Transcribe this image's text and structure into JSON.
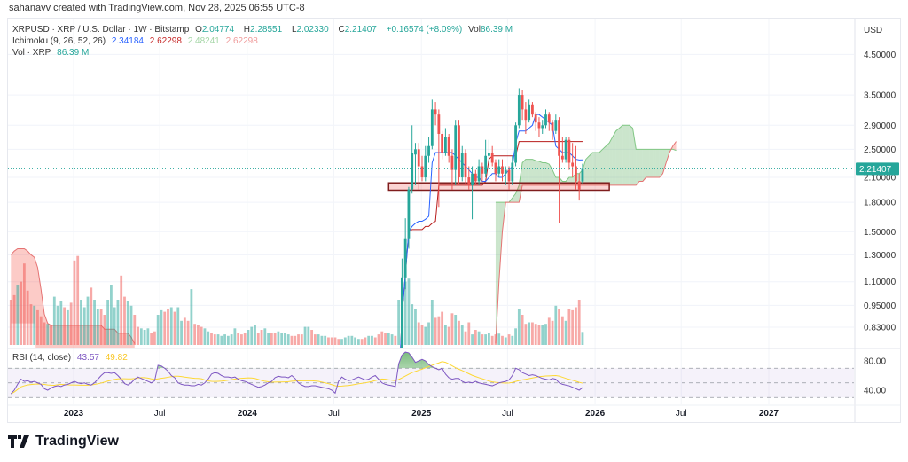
{
  "attribution": "sahanavv created with TradingView.com, Nov 28, 2025 06:55 UTC-8",
  "legend": {
    "symbol": "XRPUSD · XRP / U.S. Dollar · 1W · Bitstamp",
    "o_label": "O",
    "o": "2.04774",
    "h_label": "H",
    "h": "2.28551",
    "l_label": "L",
    "l": "2.02330",
    "c_label": "C",
    "c": "2.21407",
    "change": "+0.16574 (+8.09%)",
    "vol_label": "Vol",
    "vol": "86.39 M",
    "ichimoku_label": "Ichimoku (9, 26, 52, 26)",
    "ichimoku_values": [
      "2.34184",
      "2.62298",
      "2.48241",
      "2.62298"
    ],
    "volume_label": "Vol · XRP",
    "volume_value": "86.39 M",
    "rsi_label": "RSI (14, close)",
    "rsi_value": "43.57",
    "rsi_ma_value": "49.82"
  },
  "price_axis": {
    "currency": "USD",
    "ticks": [
      "4.50000",
      "3.50000",
      "2.90000",
      "2.50000",
      "2.10000",
      "1.80000",
      "1.50000",
      "1.30000",
      "1.10000",
      "0.95000",
      "0.83000"
    ],
    "last_price": "2.21407"
  },
  "rsi_axis": {
    "ticks": [
      "80.00",
      "40.00"
    ]
  },
  "time_axis": {
    "ticks": [
      {
        "label": "2023",
        "date": "2023-01-01",
        "bold": true
      },
      {
        "label": "Jul",
        "date": "2023-07-01",
        "bold": false
      },
      {
        "label": "2024",
        "date": "2024-01-01",
        "bold": true
      },
      {
        "label": "Jul",
        "date": "2024-07-01",
        "bold": false
      },
      {
        "label": "2025",
        "date": "2025-01-01",
        "bold": true
      },
      {
        "label": "Jul",
        "date": "2025-07-01",
        "bold": false
      },
      {
        "label": "2026",
        "date": "2026-01-01",
        "bold": true
      },
      {
        "label": "Jul",
        "date": "2026-07-01",
        "bold": false
      },
      {
        "label": "2027",
        "date": "2027-01-01",
        "bold": true
      }
    ]
  },
  "logo_text": "TradingView",
  "colors": {
    "up": "#26a69a",
    "down": "#ef5350",
    "conversion": "#2962ff",
    "base": "#b71c1c",
    "span_a": "#43a047",
    "span_b": "#e57373",
    "rsi": "#7e57c2",
    "rsi_ma": "#fdd835",
    "box": "#7f1d1d"
  },
  "chart_data": {
    "type": "candlestick",
    "interval": "1W",
    "price_scale": "log",
    "first_week": "2022-08-15",
    "first_candle_week": "2024-11-04",
    "candles": [
      [
        0.5,
        0.62,
        0.49,
        0.6
      ],
      [
        0.6,
        1.27,
        0.58,
        1.13
      ],
      [
        1.13,
        1.63,
        1.05,
        1.44
      ],
      [
        1.44,
        1.98,
        1.35,
        1.95
      ],
      [
        1.95,
        2.9,
        1.9,
        2.45
      ],
      [
        2.42,
        2.6,
        2.0,
        2.5
      ],
      [
        2.5,
        2.6,
        1.95,
        2.25
      ],
      [
        2.25,
        2.4,
        2.05,
        2.1
      ],
      [
        2.1,
        2.55,
        2.05,
        2.4
      ],
      [
        2.4,
        2.7,
        2.3,
        2.55
      ],
      [
        2.55,
        3.4,
        2.5,
        3.2
      ],
      [
        3.2,
        3.35,
        2.9,
        3.1
      ],
      [
        3.1,
        3.2,
        1.75,
        2.75
      ],
      [
        2.75,
        2.8,
        2.35,
        2.45
      ],
      [
        2.45,
        2.85,
        2.4,
        2.7
      ],
      [
        2.7,
        2.75,
        2.3,
        2.4
      ],
      [
        2.4,
        2.5,
        1.95,
        2.2
      ],
      [
        2.2,
        3.0,
        2.0,
        2.9
      ],
      [
        2.9,
        3.0,
        2.0,
        2.1
      ],
      [
        2.1,
        2.55,
        2.05,
        2.45
      ],
      [
        2.45,
        2.5,
        2.0,
        2.1
      ],
      [
        2.1,
        2.25,
        1.95,
        2.0
      ],
      [
        2.0,
        2.25,
        1.62,
        2.15
      ],
      [
        2.15,
        2.2,
        2.0,
        2.05
      ],
      [
        2.05,
        2.35,
        2.0,
        2.25
      ],
      [
        2.25,
        2.3,
        2.05,
        2.15
      ],
      [
        2.15,
        2.65,
        2.1,
        2.4
      ],
      [
        2.4,
        2.65,
        2.3,
        2.45
      ],
      [
        2.45,
        2.55,
        2.25,
        2.3
      ],
      [
        2.3,
        2.35,
        2.05,
        2.15
      ],
      [
        2.15,
        2.35,
        2.1,
        2.25
      ],
      [
        2.25,
        2.35,
        2.05,
        2.15
      ],
      [
        2.15,
        2.25,
        2.0,
        2.2
      ],
      [
        2.2,
        2.25,
        1.95,
        2.05
      ],
      [
        2.05,
        2.4,
        2.0,
        2.3
      ],
      [
        2.3,
        2.95,
        2.25,
        2.9
      ],
      [
        2.9,
        3.65,
        2.85,
        3.5
      ],
      [
        3.5,
        3.6,
        3.0,
        3.2
      ],
      [
        3.2,
        3.35,
        2.75,
        3.0
      ],
      [
        3.0,
        3.4,
        2.95,
        3.3
      ],
      [
        3.3,
        3.35,
        3.05,
        3.1
      ],
      [
        3.1,
        3.15,
        2.8,
        2.95
      ],
      [
        2.95,
        3.05,
        2.7,
        2.85
      ],
      [
        2.85,
        3.0,
        2.75,
        2.9
      ],
      [
        2.9,
        3.2,
        2.85,
        3.1
      ],
      [
        3.1,
        3.15,
        2.8,
        2.95
      ],
      [
        2.95,
        3.0,
        2.65,
        2.8
      ],
      [
        2.8,
        3.1,
        2.75,
        3.0
      ],
      [
        3.0,
        3.05,
        1.58,
        2.4
      ],
      [
        2.4,
        2.7,
        2.3,
        2.35
      ],
      [
        2.35,
        2.7,
        2.3,
        2.65
      ],
      [
        2.65,
        2.7,
        2.2,
        2.3
      ],
      [
        2.3,
        2.6,
        2.1,
        2.25
      ],
      [
        2.25,
        2.55,
        1.95,
        2.05
      ],
      [
        2.05,
        2.15,
        1.82,
        1.95
      ],
      [
        2.04774,
        2.28551,
        2.0233,
        2.21407
      ]
    ],
    "volume_m_before_candles": [
      300,
      330,
      400,
      420,
      540,
      360,
      270,
      260,
      230,
      190,
      150,
      140,
      130,
      320,
      260,
      290,
      250,
      230,
      280,
      560,
      590,
      300,
      250,
      320,
      380,
      300,
      240,
      240,
      200,
      300,
      400,
      250,
      300,
      460,
      320,
      290,
      260,
      200,
      120,
      110,
      100,
      110,
      80,
      90,
      200,
      230,
      220,
      240,
      250,
      220,
      250,
      160,
      180,
      160,
      370,
      140,
      130,
      120,
      110,
      90,
      80,
      70,
      70,
      60,
      70,
      60,
      70,
      110,
      80,
      70,
      80,
      100,
      120,
      130,
      80,
      100,
      110,
      80,
      80,
      80,
      90,
      80,
      80,
      70,
      60,
      60,
      70,
      70,
      120,
      120,
      100,
      70,
      70,
      60,
      60,
      50,
      50,
      50,
      40,
      40,
      50,
      60,
      60,
      50,
      40,
      40,
      50,
      60,
      60,
      50,
      70,
      90,
      80,
      80,
      70,
      60
    ],
    "volume_up_before_candles": "ddudddduddduduuududdduuuduudduuuudduudduuudduudduduudduddduudduuuuuuddduuudduudduuuudddduudduuudddduuuuuudduudddduudd",
    "volume_m_candles": [
      300,
      370,
      420,
      440,
      270,
      240,
      150,
      130,
      120,
      150,
      300,
      180,
      190,
      220,
      130,
      120,
      210,
      200,
      160,
      130,
      90,
      150,
      70,
      100,
      90,
      70,
      70,
      80,
      60,
      70,
      75,
      60,
      50,
      70,
      60,
      110,
      240,
      200,
      140,
      150,
      150,
      140,
      130,
      130,
      140,
      180,
      160,
      260,
      240,
      190,
      160,
      240,
      230,
      250,
      300,
      86.39
    ],
    "ichimoku_conversion": [
      0.55,
      0.9,
      1.15,
      1.5,
      1.55,
      1.58,
      1.6,
      1.6,
      1.62,
      1.65,
      2.3,
      2.45,
      2.45,
      2.45,
      2.45,
      2.45,
      2.45,
      2.4,
      2.35,
      2.3,
      2.25,
      2.2,
      2.15,
      2.1,
      2.1,
      2.05,
      2.05,
      2.1,
      2.15,
      2.15,
      2.1,
      2.1,
      2.15,
      2.2,
      2.25,
      2.6,
      2.8,
      2.8,
      2.8,
      2.85,
      2.9,
      3.1,
      3.1,
      3.05,
      3.0,
      2.95,
      2.9,
      2.55,
      2.5,
      2.45,
      2.45,
      2.45,
      2.4,
      2.35,
      2.34,
      2.34184
    ],
    "ichimoku_base": [
      0.55,
      0.9,
      1.15,
      1.5,
      1.52,
      1.52,
      1.52,
      1.52,
      1.55,
      1.55,
      1.58,
      1.6,
      2.0,
      2.0,
      2.0,
      2.0,
      2.0,
      2.0,
      2.0,
      2.0,
      2.0,
      2.0,
      2.0,
      2.0,
      2.0,
      2.0,
      2.05,
      2.35,
      2.4,
      2.4,
      2.4,
      2.4,
      2.4,
      2.4,
      2.4,
      2.4,
      2.62298,
      2.62298,
      2.62298,
      2.62298,
      2.62298,
      2.62298,
      2.62298,
      2.62298,
      2.62298,
      2.62298,
      2.62298,
      2.62298,
      2.62298,
      2.62298,
      2.62298,
      2.62298,
      2.62298,
      2.62298,
      2.62298,
      2.62298
    ],
    "cloud_start_week": "2025-05-26",
    "span_a": [
      1.8,
      1.8,
      1.8,
      1.8,
      1.8,
      1.85,
      1.9,
      2.0,
      2.3,
      2.35,
      2.35,
      2.35,
      2.33,
      2.32,
      2.3,
      2.3,
      2.28,
      2.2,
      2.1,
      2.1,
      2.05,
      2.05,
      2.1,
      2.1,
      2.15,
      2.15,
      2.2,
      2.35,
      2.4,
      2.45,
      2.45,
      2.45,
      2.5,
      2.55,
      2.6,
      2.7,
      2.8,
      2.85,
      2.9,
      2.9,
      2.9,
      2.85,
      2.5,
      2.5,
      2.5,
      2.5,
      2.5,
      2.5,
      2.5,
      2.5,
      2.5,
      2.5,
      2.5,
      2.5,
      2.48241
    ],
    "span_b": [
      0.75,
      1.1,
      1.5,
      1.8,
      1.8,
      1.8,
      1.8,
      1.8,
      2.0,
      2.0,
      2.0,
      2.0,
      2.0,
      2.0,
      2.0,
      2.0,
      2.0,
      2.0,
      2.0,
      2.0,
      2.0,
      2.0,
      2.0,
      2.0,
      2.0,
      2.0,
      2.0,
      2.0,
      2.0,
      2.0,
      2.0,
      2.0,
      2.0,
      2.0,
      2.0,
      2.0,
      2.0,
      2.0,
      2.0,
      2.0,
      2.0,
      2.0,
      2.0,
      2.05,
      2.05,
      2.1,
      2.1,
      2.1,
      2.1,
      2.1,
      2.15,
      2.3,
      2.45,
      2.55,
      2.62298
    ],
    "early_cloud_upper": [
      1.3,
      1.33,
      1.35,
      1.35,
      1.35,
      1.33,
      1.3,
      1.28,
      1.2,
      1.05,
      0.9,
      0.85,
      0.84,
      0.84,
      0.84,
      0.84,
      0.84,
      0.84,
      0.84,
      0.84,
      0.84,
      0.84,
      0.84,
      0.84,
      0.84,
      0.84,
      0.84,
      0.84,
      0.82,
      0.82,
      0.82,
      0.82,
      0.8,
      0.8,
      0.8,
      0.8,
      0.78,
      0.75
    ],
    "early_cloud_lower": [
      0.85,
      0.85,
      0.85,
      0.85,
      0.85,
      0.85,
      0.85,
      0.85,
      0.6,
      0.6,
      0.6,
      0.6,
      0.6,
      0.6,
      0.6,
      0.6,
      0.6,
      0.6,
      0.6,
      0.6,
      0.6,
      0.6,
      0.6,
      0.6,
      0.6,
      0.6,
      0.6,
      0.6,
      0.6,
      0.6,
      0.6,
      0.6,
      0.6,
      0.6,
      0.6,
      0.6,
      0.6,
      0.6
    ],
    "support_box": {
      "price_low": 1.94,
      "price_high": 2.03,
      "start_week": "2024-10-14",
      "end_week": "2026-01-19"
    },
    "rsi": [
      35,
      40,
      48,
      55,
      52,
      53,
      51,
      52,
      50,
      48,
      42,
      40,
      43,
      45,
      46,
      45,
      47,
      48,
      50,
      52,
      50,
      49,
      50,
      48,
      47,
      50,
      55,
      60,
      64,
      64,
      63,
      64,
      60,
      55,
      49,
      47,
      50,
      55,
      58,
      56,
      54,
      52,
      50,
      53,
      74,
      73,
      70,
      66,
      60,
      57,
      50,
      48,
      47,
      47,
      46,
      46,
      48,
      47,
      50,
      55,
      62,
      64,
      63,
      60,
      58,
      58,
      57,
      58,
      55,
      53,
      52,
      50,
      48,
      46,
      44,
      45,
      47,
      50,
      52,
      57,
      59,
      58,
      58,
      57,
      60,
      56,
      50,
      47,
      45,
      45,
      46,
      46,
      45,
      44,
      43,
      42,
      40,
      36,
      52,
      58,
      55,
      53,
      54,
      56,
      58,
      56,
      54,
      55,
      58,
      60,
      55,
      50,
      48,
      47,
      46,
      45,
      76,
      88,
      92,
      91,
      85,
      78,
      80,
      82,
      80,
      75,
      72,
      70,
      68,
      70,
      62,
      57,
      55,
      56,
      56,
      52,
      50,
      51,
      50,
      52,
      50,
      49,
      48,
      47,
      46,
      48,
      50,
      51,
      52,
      54,
      60,
      70,
      68,
      64,
      62,
      60,
      61,
      60,
      58,
      56,
      55,
      54,
      56,
      55,
      50,
      48,
      47,
      46,
      44,
      42,
      40,
      43.57
    ],
    "rsi_ma_period": 14,
    "rsi_levels": [
      70,
      50,
      30
    ]
  }
}
